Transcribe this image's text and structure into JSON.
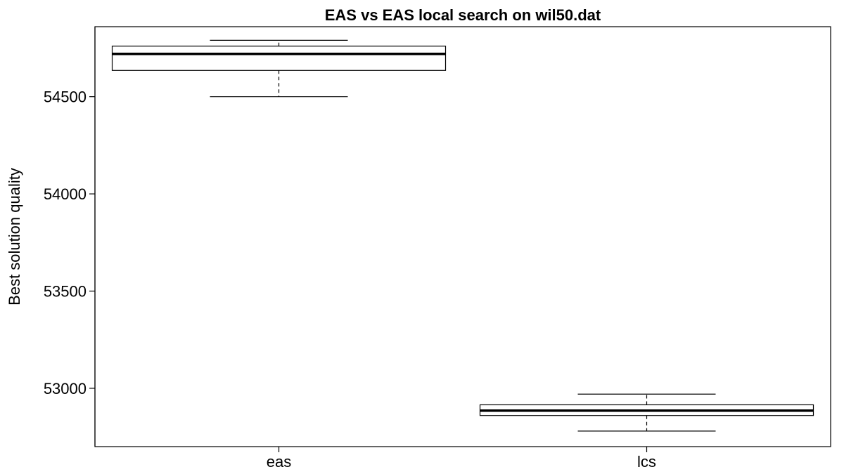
{
  "chart_data": {
    "type": "box",
    "title": "EAS vs EAS local search on wil50.dat",
    "xlabel": "",
    "ylabel": "Best solution quality",
    "categories": [
      "eas",
      "lcs"
    ],
    "boxes": [
      {
        "category": "eas",
        "min": 54500,
        "q1": 54635,
        "median": 54720,
        "q3": 54760,
        "max": 54790
      },
      {
        "category": "lcs",
        "min": 52780,
        "q1": 52860,
        "median": 52885,
        "q3": 52915,
        "max": 52970
      }
    ],
    "yticks": [
      "53000",
      "53500",
      "54000",
      "54500"
    ],
    "ylim": [
      52700,
      54860
    ],
    "grid": false,
    "legend": "none"
  }
}
